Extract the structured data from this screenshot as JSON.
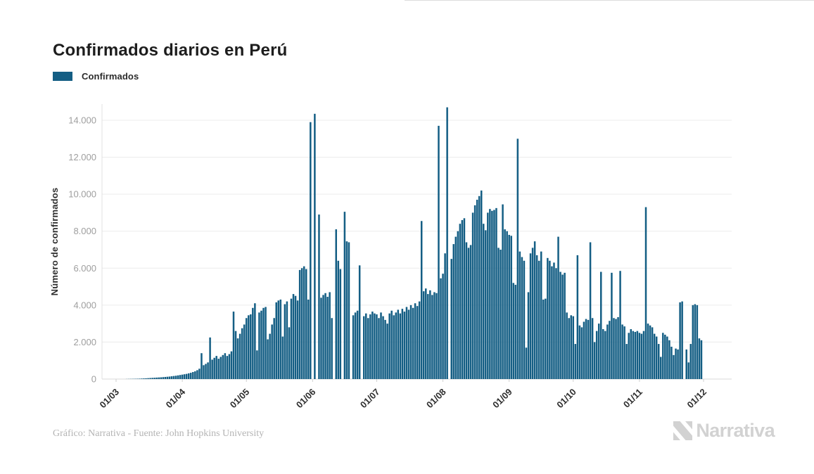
{
  "header": {
    "title": "Confirmados diarios en Perú"
  },
  "legend": {
    "label": "Confirmados",
    "color": "#145e84"
  },
  "chart_data": {
    "type": "bar",
    "title": "Confirmados diarios en Perú",
    "series_name": "Confirmados",
    "xlabel": "",
    "ylabel": "Número de confirmados",
    "bar_color": "#145e84",
    "grid": true,
    "legend_position": "top-left",
    "ylim": [
      0,
      14800
    ],
    "y_ticks": [
      0,
      2000,
      4000,
      6000,
      8000,
      10000,
      12000,
      14000
    ],
    "y_tick_labels": [
      "0",
      "2.000",
      "4.000",
      "6.000",
      "8.000",
      "10.000",
      "12.000",
      "14.000"
    ],
    "x_tick_labels": [
      "01/03",
      "01/04",
      "01/05",
      "01/06",
      "01/07",
      "01/08",
      "01/09",
      "01/10",
      "01/11",
      "01/12"
    ],
    "x_frequency": "daily",
    "days_per_month": [
      31,
      30,
      31,
      30,
      31,
      31,
      30,
      31,
      30
    ],
    "values": [
      0,
      0,
      0,
      0,
      0,
      5,
      8,
      10,
      12,
      15,
      18,
      22,
      28,
      35,
      42,
      50,
      58,
      65,
      72,
      80,
      88,
      95,
      105,
      115,
      125,
      135,
      150,
      165,
      180,
      200,
      220,
      240,
      260,
      280,
      310,
      340,
      380,
      420,
      480,
      560,
      1400,
      750,
      820,
      900,
      2250,
      1050,
      1150,
      1250,
      1100,
      1200,
      1300,
      1400,
      1250,
      1350,
      1500,
      3650,
      2600,
      2200,
      2450,
      2750,
      2950,
      3300,
      3450,
      3500,
      3850,
      4100,
      1550,
      3600,
      3700,
      3850,
      3900,
      2150,
      2450,
      2950,
      3300,
      4150,
      4250,
      4300,
      2300,
      4050,
      4200,
      2800,
      4350,
      4600,
      4500,
      4250,
      5900,
      6000,
      6100,
      5950,
      4300,
      13900,
      0,
      14350,
      0,
      8900,
      4400,
      4550,
      4650,
      4450,
      4700,
      3300,
      0,
      8100,
      6400,
      5950,
      0,
      9050,
      7450,
      7400,
      0,
      3450,
      3600,
      3700,
      6150,
      0,
      3400,
      3550,
      3300,
      3500,
      3650,
      3550,
      3500,
      3300,
      3600,
      3400,
      3200,
      3000,
      3550,
      3700,
      3450,
      3600,
      3750,
      3550,
      3800,
      3650,
      3900,
      3750,
      4000,
      3850,
      4100,
      3950,
      4200,
      8550,
      4750,
      4900,
      4600,
      4800,
      4550,
      4700,
      4650,
      13700,
      5450,
      5700,
      6800,
      14700,
      0,
      6500,
      7300,
      7700,
      8000,
      8400,
      8600,
      8700,
      7400,
      7100,
      7250,
      9000,
      9400,
      9700,
      9900,
      10200,
      8400,
      8050,
      9000,
      9200,
      9100,
      9150,
      9250,
      7100,
      7000,
      9450,
      8100,
      8000,
      7800,
      7750,
      5200,
      5100,
      13000,
      6900,
      6600,
      6400,
      1700,
      4700,
      6800,
      7100,
      7450,
      6700,
      6400,
      6900,
      4300,
      4350,
      6550,
      6400,
      6100,
      6300,
      6000,
      7700,
      5800,
      5650,
      5750,
      3600,
      3300,
      3450,
      3400,
      1900,
      6700,
      2900,
      2800,
      3100,
      3250,
      3200,
      7400,
      3300,
      2000,
      2600,
      3000,
      5800,
      2700,
      2600,
      2950,
      3150,
      5750,
      3300,
      3250,
      3350,
      5850,
      2950,
      2850,
      1900,
      2500,
      2700,
      2600,
      2550,
      2600,
      2500,
      2450,
      2600,
      9300,
      3000,
      2900,
      2800,
      2450,
      2300,
      1900,
      1200,
      2500,
      2400,
      2300,
      2100,
      1750,
      1300,
      1650,
      1600,
      4150,
      4200,
      0,
      1600,
      900,
      1900,
      4000,
      4050,
      4000,
      2200,
      2100
    ]
  },
  "footer": {
    "credit": "Gráfico: Narrativa - Fuente: John Hopkins University",
    "brand": "Narrativa"
  }
}
